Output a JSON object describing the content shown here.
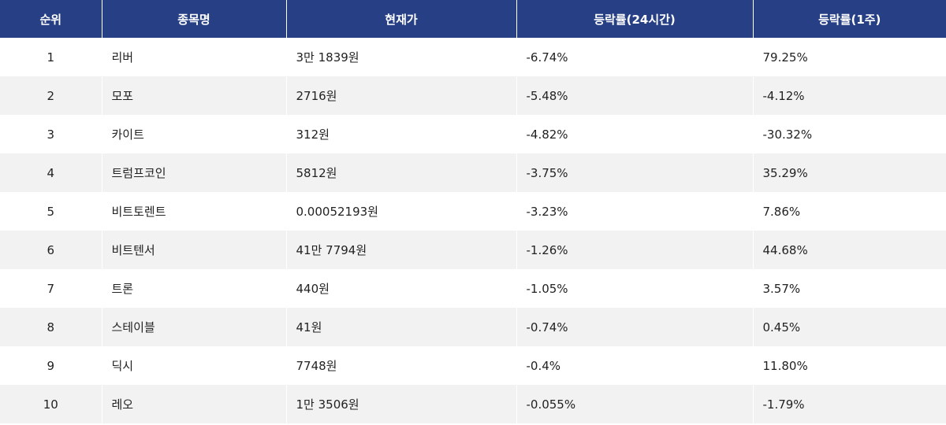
{
  "table": {
    "header": [
      "순위",
      "종목명",
      "현재가",
      "등락률(24시간)",
      "등락률(1주)"
    ],
    "rows": [
      [
        "1",
        "리버",
        "3만 1839원",
        "-6.74%",
        "79.25%"
      ],
      [
        "2",
        "모포",
        "2716원",
        "-5.48%",
        "-4.12%"
      ],
      [
        "3",
        "카이트",
        "312원",
        "-4.82%",
        "-30.32%"
      ],
      [
        "4",
        "트럼프코인",
        "5812원",
        "-3.75%",
        "35.29%"
      ],
      [
        "5",
        "비트토렌트",
        "0.00052193원",
        "-3.23%",
        "7.86%"
      ],
      [
        "6",
        "비트텐서",
        "41만 7794원",
        "-1.26%",
        "44.68%"
      ],
      [
        "7",
        "트론",
        "440원",
        "-1.05%",
        "3.57%"
      ],
      [
        "8",
        "스테이블",
        "41원",
        "-0.74%",
        "0.45%"
      ],
      [
        "9",
        "딕시",
        "7748원",
        "-0.4%",
        "11.80%"
      ],
      [
        "10",
        "레오",
        "1만 3506원",
        "-0.055%",
        "-1.79%"
      ]
    ]
  }
}
